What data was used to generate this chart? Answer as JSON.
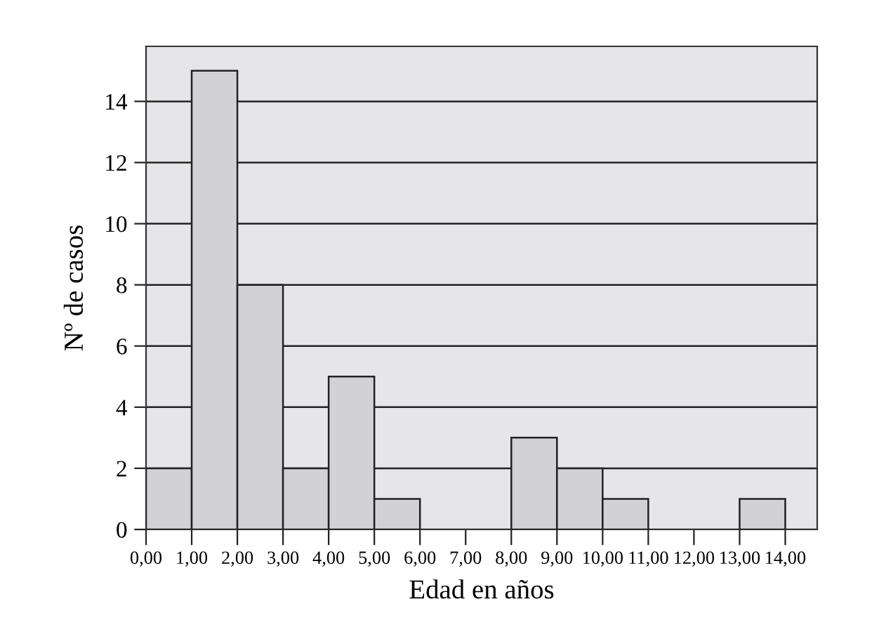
{
  "chart_data": {
    "type": "histogram",
    "xlabel": "Edad en años",
    "ylabel": "Nº de casos",
    "bins": [
      0,
      1,
      2,
      3,
      4,
      5,
      6,
      7,
      8,
      9,
      10,
      11,
      12,
      13,
      14
    ],
    "values": [
      2,
      15,
      8,
      2,
      5,
      1,
      0,
      0,
      3,
      2,
      1,
      0,
      0,
      1
    ],
    "color": "#d2d2d4",
    "xlim": [
      0,
      14.7
    ],
    "ylim": [
      0,
      15.8
    ],
    "xticks": [
      {
        "value": 0,
        "label": "0,00"
      },
      {
        "value": 1,
        "label": "1,00"
      },
      {
        "value": 2,
        "label": "2,00"
      },
      {
        "value": 3,
        "label": "3,00"
      },
      {
        "value": 4,
        "label": "4,00"
      },
      {
        "value": 5,
        "label": "5,00"
      },
      {
        "value": 6,
        "label": "6,00"
      },
      {
        "value": 7,
        "label": "7,00"
      },
      {
        "value": 8,
        "label": "8,00"
      },
      {
        "value": 9,
        "label": "9,00"
      },
      {
        "value": 10,
        "label": "10,00"
      },
      {
        "value": 11,
        "label": "11,00"
      },
      {
        "value": 12,
        "label": "12,00"
      },
      {
        "value": 13,
        "label": "13,00"
      },
      {
        "value": 14,
        "label": "14,00"
      }
    ],
    "yticks": [
      0,
      2,
      4,
      6,
      8,
      10,
      12,
      14
    ],
    "grid": "y"
  }
}
